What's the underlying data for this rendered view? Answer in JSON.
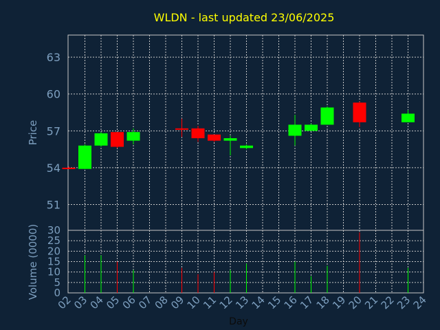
{
  "title": "WLDN - last updated 23/06/2025",
  "colors": {
    "background": "#0f2236",
    "title": "#ffff00",
    "axis_text": "#7d9fbf",
    "grid": "#c8c8c8",
    "frame": "#c8c8c8",
    "up": "#00ff00",
    "down": "#ff0000",
    "xlabel": "#0b0b0b"
  },
  "chart_data": [
    {
      "type": "candlestick",
      "title": "WLDN - last updated 23/06/2025",
      "ylabel": "Price",
      "ylim": [
        48.9,
        64.8
      ],
      "yticks": [
        51,
        54,
        57,
        60,
        63
      ],
      "grid": true,
      "x_tick_labels": [
        "02",
        "03",
        "04",
        "05",
        "06",
        "07",
        "08",
        "09",
        "10",
        "11",
        "12",
        "13",
        "14",
        "15",
        "16",
        "17",
        "18",
        "19",
        "20",
        "21",
        "22",
        "23",
        "24"
      ],
      "candles": [
        {
          "day": "02",
          "open": 54.0,
          "high": 54.1,
          "low": 53.9,
          "close": 53.9
        },
        {
          "day": "03",
          "open": 53.9,
          "high": 55.9,
          "low": 53.9,
          "close": 55.8
        },
        {
          "day": "04",
          "open": 55.8,
          "high": 56.9,
          "low": 55.7,
          "close": 56.8
        },
        {
          "day": "05",
          "open": 56.9,
          "high": 56.9,
          "low": 55.6,
          "close": 55.7
        },
        {
          "day": "06",
          "open": 56.2,
          "high": 57.2,
          "low": 55.9,
          "close": 56.9
        },
        {
          "day": "09",
          "open": 57.2,
          "high": 58.0,
          "low": 56.5,
          "close": 57.1
        },
        {
          "day": "10",
          "open": 57.2,
          "high": 57.4,
          "low": 56.1,
          "close": 56.4
        },
        {
          "day": "11",
          "open": 56.7,
          "high": 56.7,
          "low": 56.1,
          "close": 56.2
        },
        {
          "day": "12",
          "open": 56.2,
          "high": 56.6,
          "low": 55.0,
          "close": 56.4
        },
        {
          "day": "13",
          "open": 55.6,
          "high": 55.9,
          "low": 55.5,
          "close": 55.8
        },
        {
          "day": "16",
          "open": 56.6,
          "high": 58.3,
          "low": 55.8,
          "close": 57.5
        },
        {
          "day": "17",
          "open": 57.0,
          "high": 57.6,
          "low": 57.0,
          "close": 57.5
        },
        {
          "day": "18",
          "open": 57.5,
          "high": 59.0,
          "low": 57.5,
          "close": 58.9
        },
        {
          "day": "20",
          "open": 59.3,
          "high": 59.4,
          "low": 57.3,
          "close": 57.7
        },
        {
          "day": "23",
          "open": 57.7,
          "high": 58.7,
          "low": 57.7,
          "close": 58.4
        }
      ]
    },
    {
      "type": "bar",
      "ylabel": "Volume (0000)",
      "xlabel": "Day",
      "ylim": [
        0,
        30
      ],
      "yticks": [
        0,
        5,
        10,
        15,
        20,
        25,
        30
      ],
      "grid": true,
      "bars": [
        {
          "day": "02",
          "value": 0,
          "direction": "down"
        },
        {
          "day": "03",
          "value": 18,
          "direction": "up"
        },
        {
          "day": "04",
          "value": 18,
          "direction": "up"
        },
        {
          "day": "05",
          "value": 15,
          "direction": "down"
        },
        {
          "day": "06",
          "value": 11,
          "direction": "up"
        },
        {
          "day": "09",
          "value": 12,
          "direction": "down"
        },
        {
          "day": "10",
          "value": 9,
          "direction": "down"
        },
        {
          "day": "11",
          "value": 10,
          "direction": "down"
        },
        {
          "day": "12",
          "value": 11,
          "direction": "up"
        },
        {
          "day": "13",
          "value": 14,
          "direction": "up"
        },
        {
          "day": "16",
          "value": 15,
          "direction": "up"
        },
        {
          "day": "17",
          "value": 8,
          "direction": "up"
        },
        {
          "day": "18",
          "value": 13,
          "direction": "up"
        },
        {
          "day": "20",
          "value": 29,
          "direction": "down"
        },
        {
          "day": "23",
          "value": 12,
          "direction": "up"
        }
      ]
    }
  ]
}
